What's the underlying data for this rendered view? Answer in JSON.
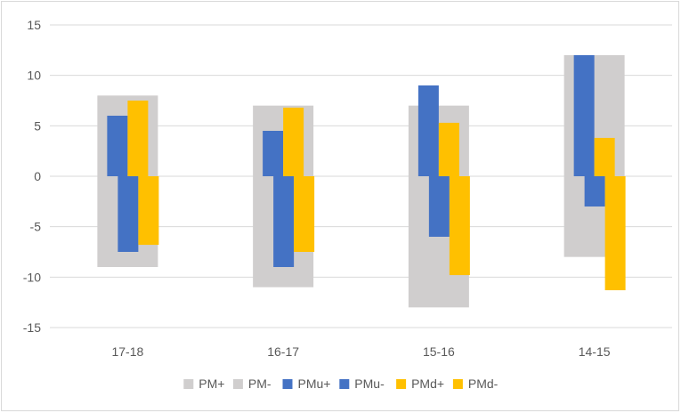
{
  "chart_data": {
    "type": "bar",
    "categories": [
      "17-18",
      "16-17",
      "15-16",
      "14-15"
    ],
    "ylim": [
      -15,
      15
    ],
    "yticks": [
      15,
      10,
      5,
      0,
      -5,
      -10,
      -15
    ],
    "grid": true,
    "legend_position": "bottom",
    "series": [
      {
        "name": "PM+",
        "values": [
          8,
          7,
          7,
          12
        ],
        "color": "#d0cece"
      },
      {
        "name": "PM-",
        "values": [
          -9,
          -11,
          -13,
          -8
        ],
        "color": "#d0cece"
      },
      {
        "name": "PMu+",
        "values": [
          6,
          4.5,
          9,
          12
        ],
        "color": "#4472c4"
      },
      {
        "name": "PMu-",
        "values": [
          -7.5,
          -9,
          -6,
          -3
        ],
        "color": "#4472c4"
      },
      {
        "name": "PMd+",
        "values": [
          7.5,
          6.8,
          5.3,
          3.8
        ],
        "color": "#ffc000"
      },
      {
        "name": "PMd-",
        "values": [
          -6.8,
          -7.5,
          -9.8,
          -11.3
        ],
        "color": "#ffc000"
      }
    ]
  }
}
